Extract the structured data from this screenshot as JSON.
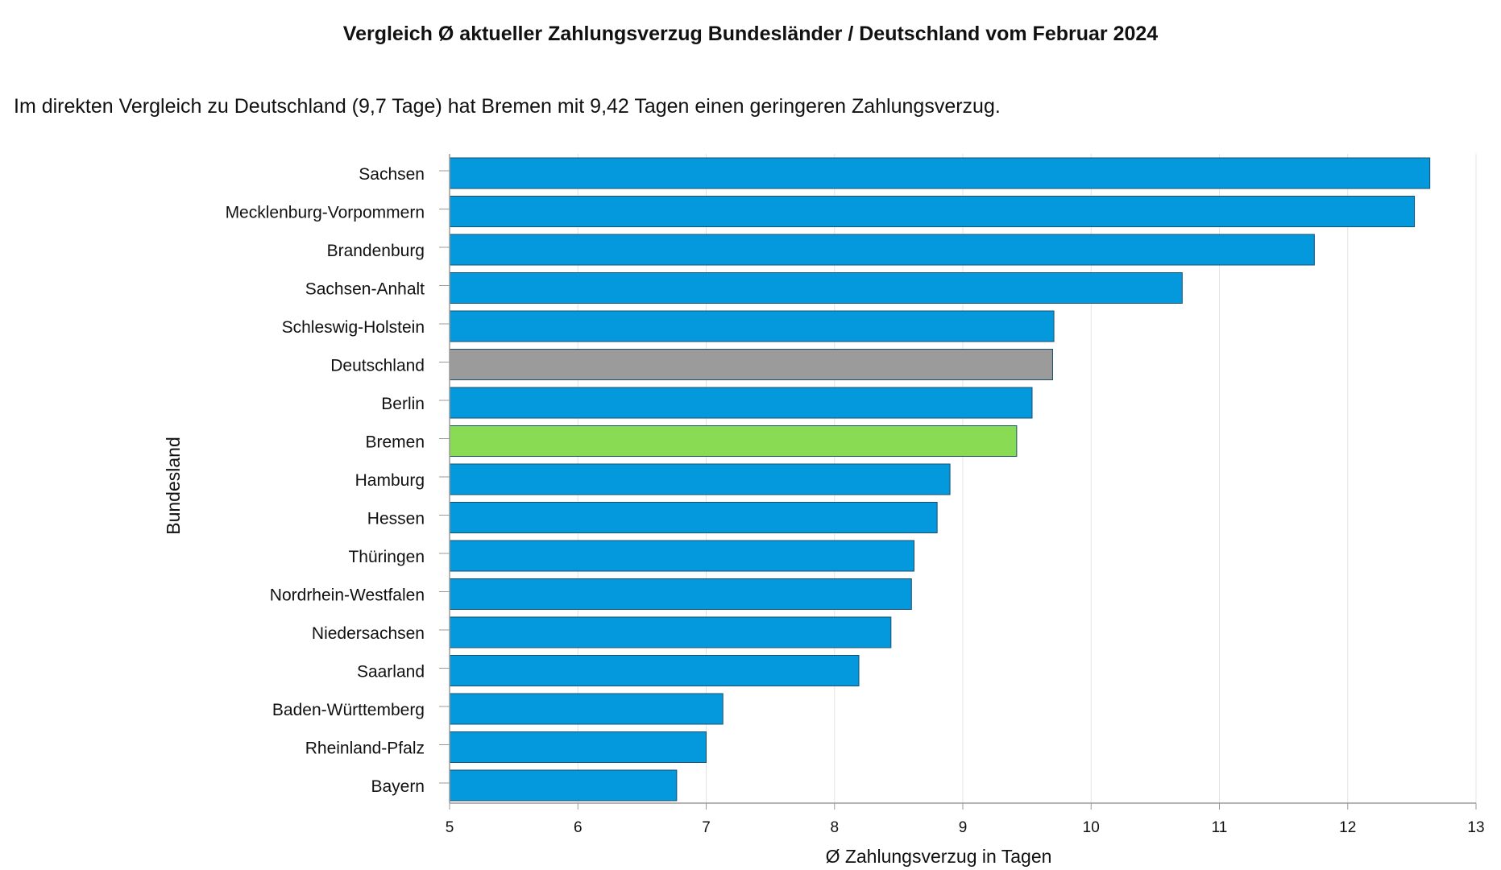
{
  "chart_data": {
    "type": "bar",
    "orientation": "horizontal",
    "title": "Vergleich Ø aktueller Zahlungsverzug Bundesländer / Deutschland vom Februar 2024",
    "subtitle": "Im direkten Vergleich zu Deutschland (9,7 Tage) hat Bremen mit 9,42 Tagen einen geringeren Zahlungsverzug.",
    "xlabel": "Ø Zahlungsverzug in Tagen",
    "ylabel": "Bundesland",
    "xlim": [
      5,
      13
    ],
    "xticks": [
      5,
      6,
      7,
      8,
      9,
      10,
      11,
      12,
      13
    ],
    "grid": true,
    "legend": "none",
    "categories": [
      "Sachsen",
      "Mecklenburg-Vorpommern",
      "Brandenburg",
      "Sachsen-Anhalt",
      "Schleswig-Holstein",
      "Deutschland",
      "Berlin",
      "Bremen",
      "Hamburg",
      "Hessen",
      "Thüringen",
      "Nordrhein-Westfalen",
      "Niedersachsen",
      "Saarland",
      "Baden-Württemberg",
      "Rheinland-Pfalz",
      "Bayern"
    ],
    "values": [
      12.64,
      12.52,
      11.74,
      10.71,
      9.71,
      9.7,
      9.54,
      9.42,
      8.9,
      8.8,
      8.62,
      8.6,
      8.44,
      8.19,
      7.13,
      7.0,
      6.77
    ],
    "colors": {
      "default": "#0499DD",
      "highlight_national": "#9B9B9B",
      "highlight_selected": "#8ADB54",
      "bar_stroke": "#1A4E6E",
      "grid": "#E4E4E4",
      "axis": "#9A9A9A"
    },
    "highlights": {
      "Deutschland": "highlight_national",
      "Bremen": "highlight_selected"
    }
  }
}
